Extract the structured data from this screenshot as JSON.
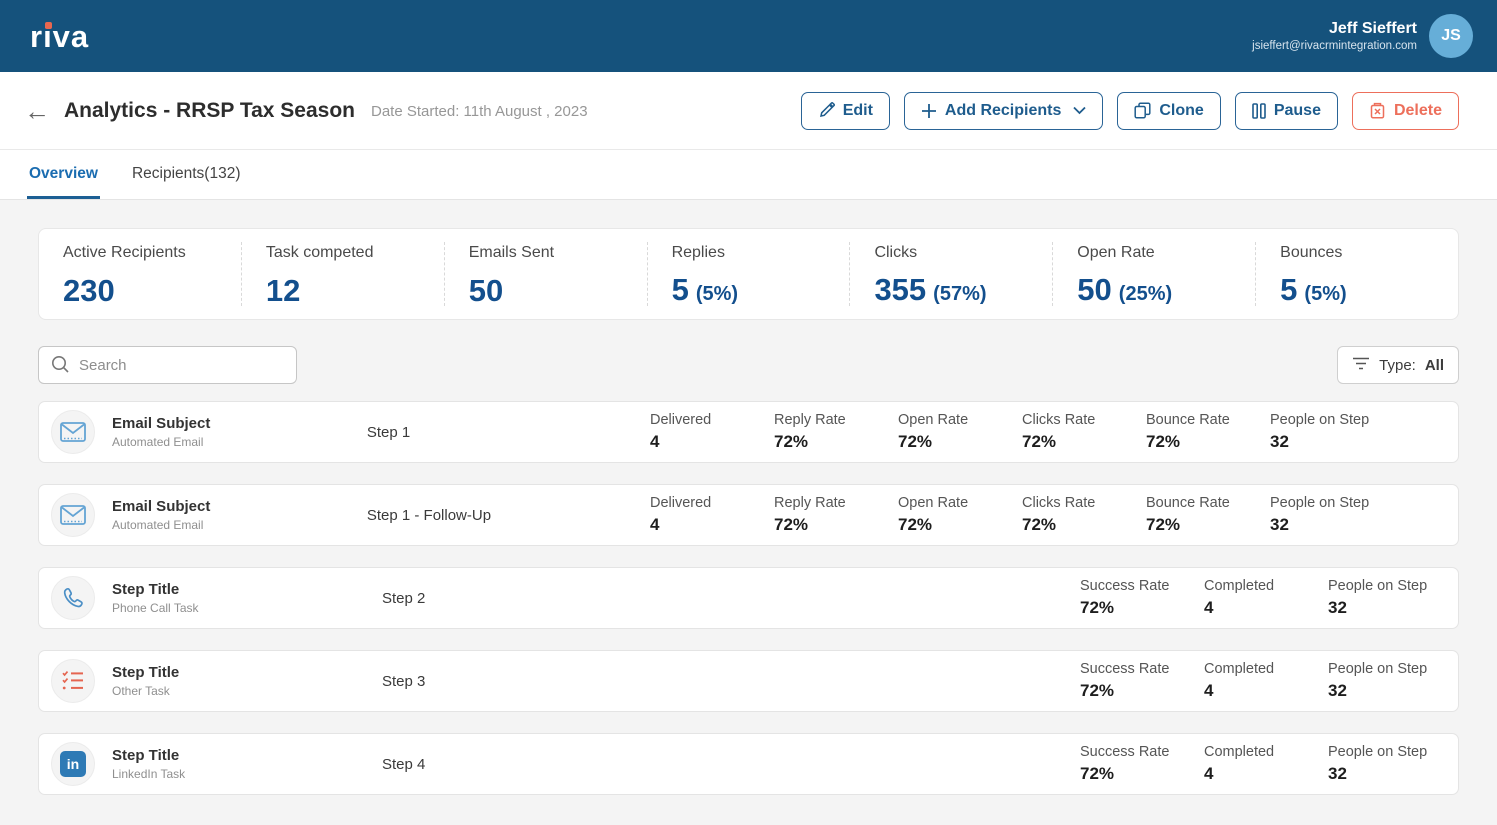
{
  "header": {
    "logo": "riva",
    "user": {
      "name": "Jeff Sieffert",
      "email": "jsieffert@rivacrmintegration.com",
      "avatar_initials": "JS"
    }
  },
  "title_bar": {
    "title": "Analytics - RRSP Tax Season",
    "date_started": "Date Started: 11th August , 2023",
    "buttons": {
      "edit": "Edit",
      "add_recipients": "Add Recipients",
      "clone": "Clone",
      "pause": "Pause",
      "delete": "Delete"
    }
  },
  "tabs": [
    {
      "label": "Overview",
      "active": true
    },
    {
      "label": "Recipients(132)",
      "active": false
    }
  ],
  "stats": [
    {
      "label": "Active Recipients",
      "value": "230",
      "percent": ""
    },
    {
      "label": "Task competed",
      "value": "12",
      "percent": ""
    },
    {
      "label": "Emails Sent",
      "value": "50",
      "percent": ""
    },
    {
      "label": "Replies",
      "value": "5",
      "percent": "(5%)"
    },
    {
      "label": "Clicks",
      "value": "355",
      "percent": "(57%)"
    },
    {
      "label": "Open Rate",
      "value": "50",
      "percent": "(25%)"
    },
    {
      "label": "Bounces",
      "value": "5",
      "percent": "(5%)"
    }
  ],
  "toolbar": {
    "search_placeholder": "Search",
    "filter_prefix": "Type:",
    "filter_value": "All"
  },
  "rows": [
    {
      "icon": "email-icon",
      "title": "Email Subject",
      "subtitle": "Automated Email",
      "step": "Step 1",
      "metrics": [
        {
          "label": "Delivered",
          "value": "4"
        },
        {
          "label": "Reply Rate",
          "value": "72%"
        },
        {
          "label": "Open Rate",
          "value": "72%"
        },
        {
          "label": "Clicks Rate",
          "value": "72%"
        },
        {
          "label": "Bounce Rate",
          "value": "72%"
        },
        {
          "label": "People on Step",
          "value": "32"
        }
      ]
    },
    {
      "icon": "email-icon",
      "title": "Email Subject",
      "subtitle": "Automated Email",
      "step": "Step 1 - Follow-Up",
      "metrics": [
        {
          "label": "Delivered",
          "value": "4"
        },
        {
          "label": "Reply Rate",
          "value": "72%"
        },
        {
          "label": "Open Rate",
          "value": "72%"
        },
        {
          "label": "Clicks Rate",
          "value": "72%"
        },
        {
          "label": "Bounce Rate",
          "value": "72%"
        },
        {
          "label": "People on Step",
          "value": "32"
        }
      ]
    },
    {
      "icon": "phone-icon",
      "title": "Step Title",
      "subtitle": "Phone Call Task",
      "step": "Step 2",
      "metrics": [
        {
          "label": "Success Rate",
          "value": "72%"
        },
        {
          "label": "Completed",
          "value": "4"
        },
        {
          "label": "People on Step",
          "value": "32"
        }
      ]
    },
    {
      "icon": "checklist-icon",
      "title": "Step Title",
      "subtitle": "Other Task",
      "step": "Step 3",
      "metrics": [
        {
          "label": "Success Rate",
          "value": "72%"
        },
        {
          "label": "Completed",
          "value": "4"
        },
        {
          "label": "People on Step",
          "value": "32"
        }
      ]
    },
    {
      "icon": "linkedin-icon",
      "title": "Step Title",
      "subtitle": "LinkedIn Task",
      "step": "Step 4",
      "metrics": [
        {
          "label": "Success Rate",
          "value": "72%"
        },
        {
          "label": "Completed",
          "value": "4"
        },
        {
          "label": "People on Step",
          "value": "32"
        }
      ]
    }
  ],
  "colors": {
    "header_blue": "#15527c",
    "accent_blue": "#1e5c8d",
    "tab_blue": "#1a6cb0",
    "stat_blue": "#134f8d",
    "delete_coral": "#ed6f5b",
    "avatar_blue": "#66aed8",
    "logo_dot_orange": "#e8674f",
    "page_bg": "#f4f4f4"
  }
}
